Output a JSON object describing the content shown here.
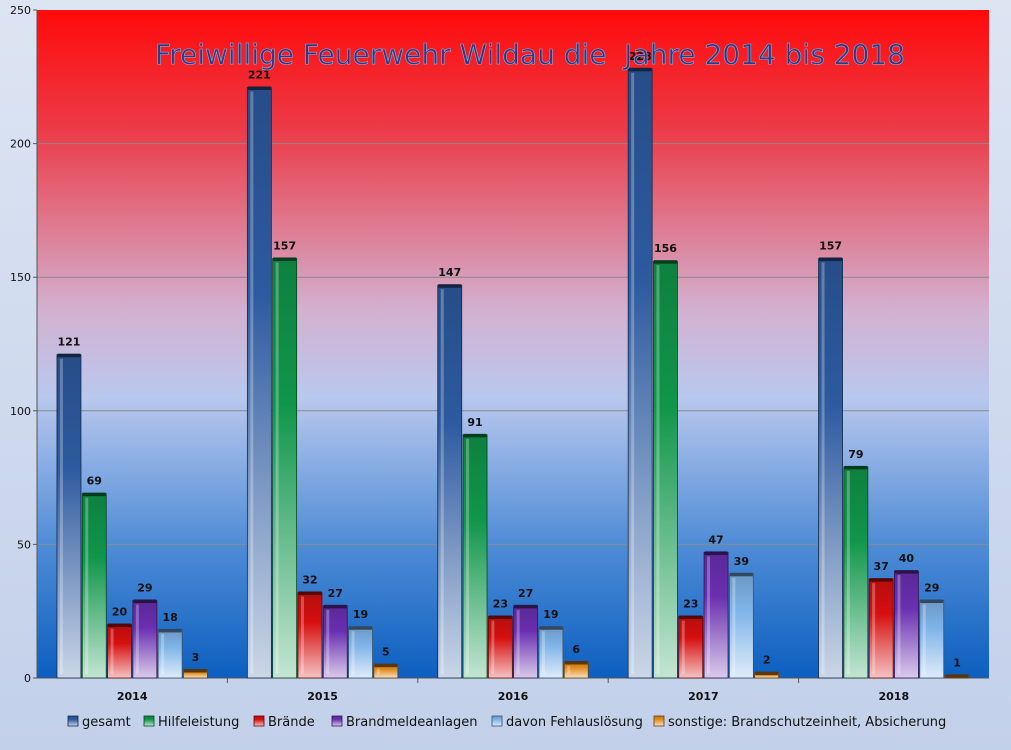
{
  "chart_data": {
    "type": "bar",
    "title": "Freiwillige Feuerwehr Wildau die  Jahre 2014 bis 2018",
    "xlabel": "",
    "ylabel": "",
    "ylim": [
      0,
      250
    ],
    "yticks": [
      0,
      50,
      100,
      150,
      200,
      250
    ],
    "grid": true,
    "legend_position": "bottom",
    "categories": [
      "2014",
      "2015",
      "2016",
      "2017",
      "2018"
    ],
    "series": [
      {
        "name": "gesamt",
        "color": "#2d5aa0",
        "values": [
          121,
          221,
          147,
          228,
          157
        ]
      },
      {
        "name": "Hilfeleistung",
        "color": "#10964a",
        "values": [
          69,
          157,
          91,
          156,
          79
        ]
      },
      {
        "name": "Brände",
        "color": "#d60f0f",
        "values": [
          20,
          32,
          23,
          23,
          37
        ]
      },
      {
        "name": "Brandmeldeanlagen",
        "color": "#6a2fb0",
        "values": [
          29,
          27,
          27,
          47,
          40
        ]
      },
      {
        "name": "davon Fehlauslösung",
        "color": "#7fb3e8",
        "values": [
          18,
          19,
          19,
          39,
          29
        ]
      },
      {
        "name": "sonstige: Brandschutzeinheit, Absicherung",
        "color": "#e08a1c",
        "values": [
          3,
          5,
          6,
          2,
          1
        ]
      }
    ]
  }
}
